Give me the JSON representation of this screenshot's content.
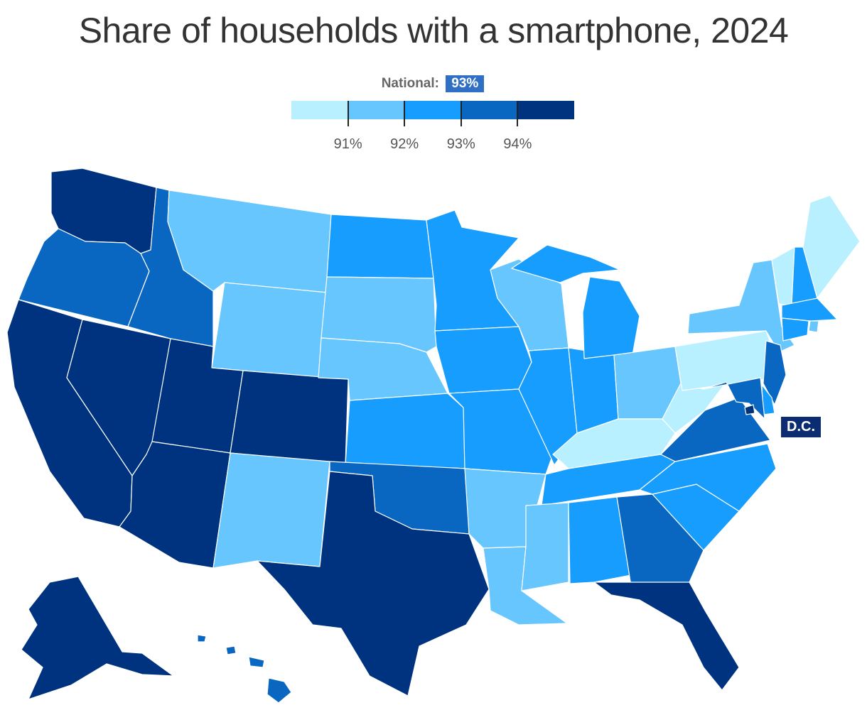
{
  "title": "Share of households with a smartphone, 2024",
  "legend": {
    "national_label": "National:",
    "national_value": "93%",
    "bins": [
      {
        "color": "#b8f0ff"
      },
      {
        "color": "#66c6fd"
      },
      {
        "color": "#179dfd"
      },
      {
        "color": "#0a67c1"
      },
      {
        "color": "#00337f"
      }
    ],
    "ticks": [
      "91%",
      "92%",
      "93%",
      "94%"
    ]
  },
  "callout": {
    "label": "D.C."
  },
  "states": [
    {
      "id": "WA",
      "bin": 4
    },
    {
      "id": "OR",
      "bin": 3
    },
    {
      "id": "CA",
      "bin": 4
    },
    {
      "id": "NV",
      "bin": 4
    },
    {
      "id": "ID",
      "bin": 3
    },
    {
      "id": "MT",
      "bin": 1
    },
    {
      "id": "WY",
      "bin": 1
    },
    {
      "id": "UT",
      "bin": 4
    },
    {
      "id": "AZ",
      "bin": 4
    },
    {
      "id": "CO",
      "bin": 4
    },
    {
      "id": "NM",
      "bin": 1
    },
    {
      "id": "ND",
      "bin": 2
    },
    {
      "id": "SD",
      "bin": 1
    },
    {
      "id": "NE",
      "bin": 1
    },
    {
      "id": "KS",
      "bin": 2
    },
    {
      "id": "OK",
      "bin": 3
    },
    {
      "id": "TX",
      "bin": 4
    },
    {
      "id": "MN",
      "bin": 2
    },
    {
      "id": "IA",
      "bin": 2
    },
    {
      "id": "MO",
      "bin": 2
    },
    {
      "id": "AR",
      "bin": 1
    },
    {
      "id": "LA",
      "bin": 1
    },
    {
      "id": "WI",
      "bin": 1
    },
    {
      "id": "IL",
      "bin": 2
    },
    {
      "id": "MI",
      "bin": 2
    },
    {
      "id": "IN",
      "bin": 2
    },
    {
      "id": "OH",
      "bin": 1
    },
    {
      "id": "KY",
      "bin": 0
    },
    {
      "id": "TN",
      "bin": 2
    },
    {
      "id": "MS",
      "bin": 1
    },
    {
      "id": "AL",
      "bin": 2
    },
    {
      "id": "GA",
      "bin": 3
    },
    {
      "id": "FL",
      "bin": 4
    },
    {
      "id": "SC",
      "bin": 2
    },
    {
      "id": "NC",
      "bin": 2
    },
    {
      "id": "VA",
      "bin": 3
    },
    {
      "id": "WV",
      "bin": 0
    },
    {
      "id": "PA",
      "bin": 0
    },
    {
      "id": "NY",
      "bin": 1
    },
    {
      "id": "VT",
      "bin": 0
    },
    {
      "id": "NH",
      "bin": 2
    },
    {
      "id": "ME",
      "bin": 0
    },
    {
      "id": "MA",
      "bin": 2
    },
    {
      "id": "RI",
      "bin": 1
    },
    {
      "id": "CT",
      "bin": 2
    },
    {
      "id": "NJ",
      "bin": 3
    },
    {
      "id": "DE",
      "bin": 2
    },
    {
      "id": "MD",
      "bin": 3
    },
    {
      "id": "DC",
      "bin": 4
    },
    {
      "id": "AK",
      "bin": 4
    },
    {
      "id": "HI",
      "bin": 3
    }
  ]
}
